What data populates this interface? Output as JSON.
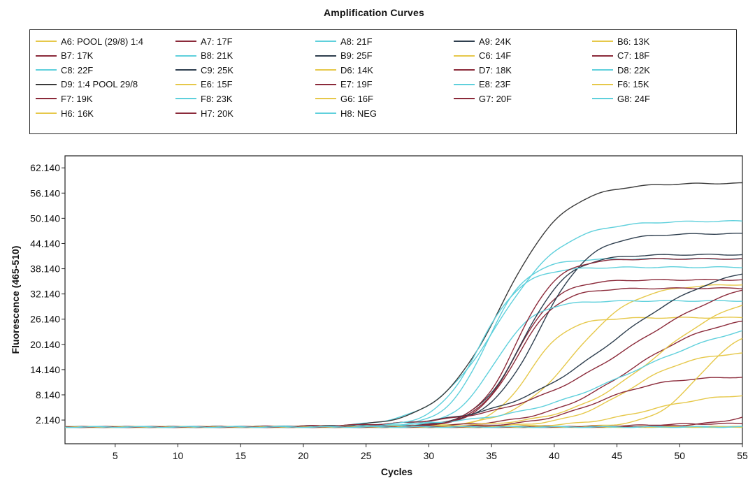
{
  "chart_data": {
    "type": "line",
    "title": "Amplification Curves",
    "xlabel": "Cycles",
    "ylabel": "Fluorescence (465-510)",
    "xlim": [
      1,
      55
    ],
    "ylim": [
      -3.5,
      65
    ],
    "x_ticks": [
      5,
      10,
      15,
      20,
      25,
      30,
      35,
      40,
      45,
      50,
      55
    ],
    "y_ticks": [
      2.14,
      8.14,
      14.14,
      20.14,
      26.14,
      32.14,
      38.14,
      44.14,
      50.14,
      56.14,
      62.14
    ],
    "y_tick_labels": [
      "2.140",
      "8.140",
      "14.140",
      "20.140",
      "26.140",
      "32.140",
      "38.140",
      "44.140",
      "50.140",
      "56.140",
      "62.140"
    ],
    "legend_position": "top",
    "grid": false,
    "baseline": 0.5,
    "series": [
      {
        "name": "A6: POOL (29/8) 1:4",
        "color": "#e6c84a",
        "plateau": 34,
        "midpoint": 41.5,
        "slope": 2.4
      },
      {
        "name": "A7: 17F",
        "color": "#8b2a3a",
        "plateau": 35,
        "midpoint": 37.0,
        "slope": 1.6
      },
      {
        "name": "A8: 21F",
        "color": "#5fd0dc",
        "plateau": 40,
        "midpoint": 34.6,
        "slope": 1.6
      },
      {
        "name": "A9: 24K",
        "color": "#2e3e4e",
        "plateau": 46,
        "midpoint": 38.8,
        "slope": 2.0
      },
      {
        "name": "B6: 13K",
        "color": "#e6c84a",
        "plateau": 26,
        "midpoint": 38.0,
        "slope": 1.5
      },
      {
        "name": "B7: 17K",
        "color": "#8b2a3a",
        "plateau": 33,
        "midpoint": 37.0,
        "slope": 1.6
      },
      {
        "name": "B8: 21K",
        "color": "#5fd0dc",
        "plateau": 30,
        "midpoint": 35.2,
        "slope": 1.6
      },
      {
        "name": "B9: 25F",
        "color": "#2e3e4e",
        "plateau": 41,
        "midpoint": 37.5,
        "slope": 1.8
      },
      {
        "name": "C6: 14F",
        "color": "#e6c84a",
        "plateau": 18,
        "midpoint": 46.0,
        "slope": 2.5
      },
      {
        "name": "C7: 18F",
        "color": "#8b2a3a",
        "plateau": 27,
        "midpoint": 46.0,
        "slope": 3.5
      },
      {
        "name": "C8: 22F",
        "color": "#5fd0dc",
        "plateau": 49,
        "midpoint": 35.5,
        "slope": 2.6
      },
      {
        "name": "C9: 25K",
        "color": "#2e3e4e",
        "plateau": 40,
        "midpoint": 44.5,
        "slope": 4.5
      },
      {
        "name": "D6: 14K",
        "color": "#e6c84a",
        "plateau": 33,
        "midpoint": 48.0,
        "slope": 3.5
      },
      {
        "name": "D7: 18K",
        "color": "#8b2a3a",
        "plateau": 12,
        "midpoint": 43.5,
        "slope": 2.6
      },
      {
        "name": "D8: 22K",
        "color": "#5fd0dc",
        "plateau": 27,
        "midpoint": 46.5,
        "slope": 5.0
      },
      {
        "name": "D9: 1:4 POOL 29/8",
        "color": "#3a3a3a",
        "plateau": 58,
        "midpoint": 35.8,
        "slope": 2.5
      },
      {
        "name": "E6: 15F",
        "color": "#e6c84a",
        "plateau": 24,
        "midpoint": 51.5,
        "slope": 1.8
      },
      {
        "name": "E7: 19F",
        "color": "#8b2a3a",
        "plateau": 38,
        "midpoint": 46.0,
        "slope": 5.0
      },
      {
        "name": "E8: 23F",
        "color": "#5fd0dc",
        "plateau": 38,
        "midpoint": 34.0,
        "slope": 1.7
      },
      {
        "name": "F6: 15K",
        "color": "#e6c84a",
        "plateau": 8,
        "midpoint": 47.5,
        "slope": 2.8
      },
      {
        "name": "F7: 19K",
        "color": "#8b2a3a",
        "plateau": 40,
        "midpoint": 37.0,
        "slope": 1.6
      },
      {
        "name": "F8: 23K",
        "color": "#5fd0dc",
        "plateau": 0.2,
        "midpoint": 60.0,
        "slope": 3.0
      },
      {
        "name": "G6: 16F",
        "color": "#e6c84a",
        "plateau": 0.2,
        "midpoint": 60.0,
        "slope": 3.0
      },
      {
        "name": "G7: 20F",
        "color": "#8b2a3a",
        "plateau": 0.8,
        "midpoint": 47.0,
        "slope": 2.0
      },
      {
        "name": "G8: 24F",
        "color": "#5fd0dc",
        "plateau": 0.1,
        "midpoint": 60.0,
        "slope": 3.0
      },
      {
        "name": "H6: 16K",
        "color": "#e6c84a",
        "plateau": 0.3,
        "midpoint": 60.0,
        "slope": 3.0
      },
      {
        "name": "H7: 20K",
        "color": "#8b2a3a",
        "plateau": 10,
        "midpoint": 58.0,
        "slope": 2.5
      },
      {
        "name": "H8: NEG",
        "color": "#5fd0dc",
        "plateau": 0.2,
        "midpoint": 60.0,
        "slope": 3.0
      }
    ]
  }
}
